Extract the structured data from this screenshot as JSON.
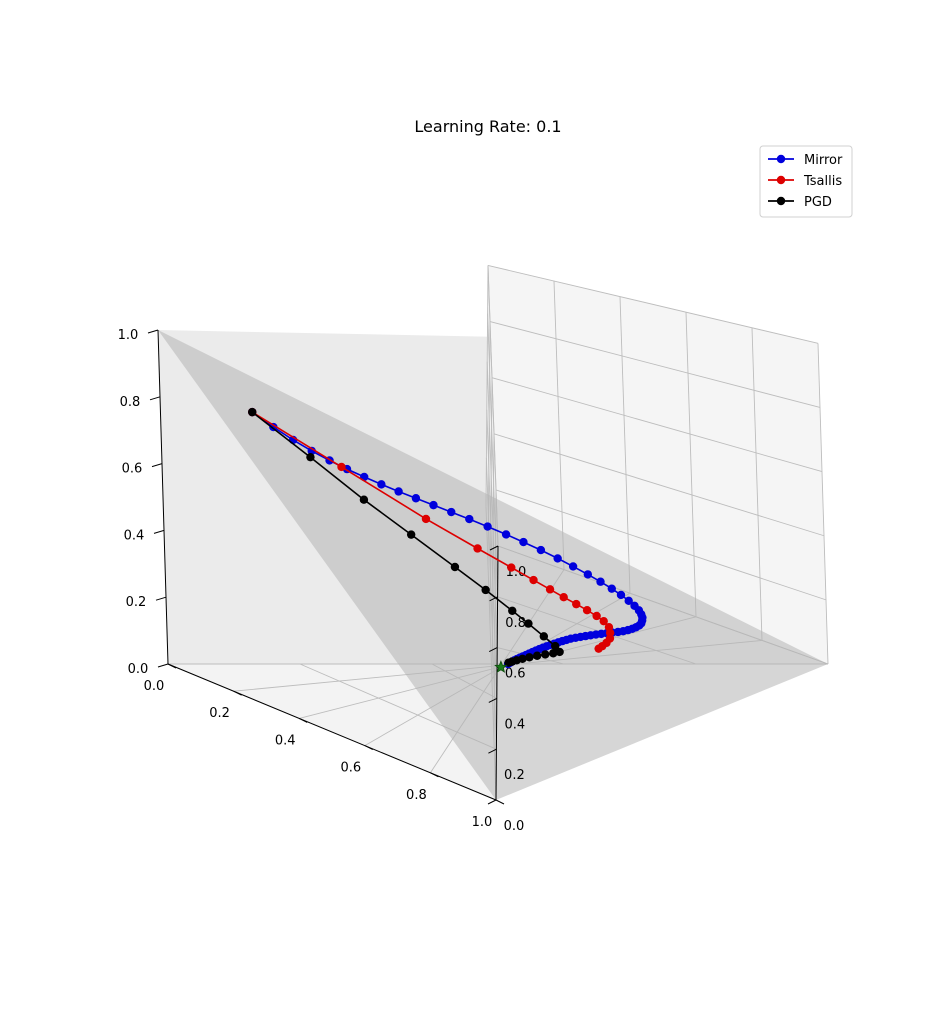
{
  "chart_data": {
    "type": "line",
    "projection": "3d-simplex",
    "title": "Learning Rate: 0.1",
    "xlabel": "",
    "ylabel": "",
    "zlabel": "",
    "xlim": [
      0,
      1
    ],
    "ylim": [
      0,
      1
    ],
    "zlim": [
      0,
      1
    ],
    "x_ticks": [
      "0.0",
      "0.2",
      "0.4",
      "0.6",
      "0.8",
      "1.0"
    ],
    "y_ticks": [
      "0.0",
      "0.2",
      "0.4",
      "0.6",
      "0.8",
      "1.0"
    ],
    "z_ticks": [
      "0.0",
      "0.2",
      "0.4",
      "0.6",
      "0.8",
      "1.0"
    ],
    "grid": true,
    "legend_position": "top-right",
    "simplex_color": "#b5b5b5",
    "series": [
      {
        "name": "Mirror",
        "color": "#0000dd",
        "points": [
          [
            0.1,
            0.1,
            0.8
          ],
          [
            0.112,
            0.13,
            0.758
          ],
          [
            0.12,
            0.16,
            0.72
          ],
          [
            0.124,
            0.19,
            0.686
          ],
          [
            0.125,
            0.22,
            0.655
          ],
          [
            0.124,
            0.25,
            0.626
          ],
          [
            0.121,
            0.28,
            0.599
          ],
          [
            0.117,
            0.31,
            0.573
          ],
          [
            0.112,
            0.34,
            0.548
          ],
          [
            0.106,
            0.37,
            0.524
          ],
          [
            0.1,
            0.4,
            0.5
          ],
          [
            0.094,
            0.43,
            0.476
          ],
          [
            0.088,
            0.46,
            0.452
          ],
          [
            0.083,
            0.49,
            0.427
          ],
          [
            0.079,
            0.52,
            0.401
          ],
          [
            0.076,
            0.548,
            0.376
          ],
          [
            0.074,
            0.576,
            0.35
          ],
          [
            0.074,
            0.603,
            0.323
          ],
          [
            0.075,
            0.628,
            0.297
          ],
          [
            0.077,
            0.652,
            0.271
          ],
          [
            0.08,
            0.673,
            0.247
          ],
          [
            0.084,
            0.692,
            0.224
          ],
          [
            0.089,
            0.708,
            0.203
          ],
          [
            0.095,
            0.722,
            0.183
          ],
          [
            0.101,
            0.733,
            0.166
          ],
          [
            0.108,
            0.742,
            0.15
          ],
          [
            0.116,
            0.748,
            0.136
          ],
          [
            0.124,
            0.752,
            0.124
          ],
          [
            0.133,
            0.754,
            0.113
          ],
          [
            0.142,
            0.755,
            0.103
          ],
          [
            0.151,
            0.754,
            0.095
          ],
          [
            0.161,
            0.751,
            0.088
          ],
          [
            0.171,
            0.747,
            0.082
          ],
          [
            0.181,
            0.742,
            0.077
          ],
          [
            0.191,
            0.736,
            0.073
          ],
          [
            0.201,
            0.729,
            0.07
          ],
          [
            0.211,
            0.721,
            0.068
          ],
          [
            0.221,
            0.713,
            0.066
          ],
          [
            0.231,
            0.705,
            0.064
          ],
          [
            0.241,
            0.697,
            0.062
          ],
          [
            0.251,
            0.689,
            0.06
          ],
          [
            0.261,
            0.681,
            0.058
          ],
          [
            0.271,
            0.673,
            0.056
          ],
          [
            0.281,
            0.665,
            0.054
          ],
          [
            0.291,
            0.657,
            0.052
          ],
          [
            0.301,
            0.65,
            0.049
          ],
          [
            0.311,
            0.643,
            0.046
          ],
          [
            0.321,
            0.636,
            0.043
          ],
          [
            0.331,
            0.629,
            0.04
          ],
          [
            0.341,
            0.622,
            0.037
          ],
          [
            0.351,
            0.615,
            0.034
          ],
          [
            0.361,
            0.608,
            0.031
          ],
          [
            0.371,
            0.601,
            0.028
          ],
          [
            0.381,
            0.594,
            0.025
          ],
          [
            0.391,
            0.587,
            0.022
          ],
          [
            0.401,
            0.58,
            0.019
          ],
          [
            0.411,
            0.573,
            0.016
          ],
          [
            0.42,
            0.566,
            0.014
          ],
          [
            0.429,
            0.559,
            0.012
          ],
          [
            0.438,
            0.552,
            0.01
          ],
          [
            0.446,
            0.546,
            0.008
          ],
          [
            0.454,
            0.54,
            0.006
          ],
          [
            0.461,
            0.535,
            0.004
          ],
          [
            0.468,
            0.53,
            0.002
          ]
        ]
      },
      {
        "name": "Tsallis",
        "color": "#dd0000",
        "points": [
          [
            0.1,
            0.1,
            0.8
          ],
          [
            0.126,
            0.24,
            0.634
          ],
          [
            0.152,
            0.38,
            0.468
          ],
          [
            0.162,
            0.47,
            0.368
          ],
          [
            0.168,
            0.53,
            0.302
          ],
          [
            0.172,
            0.57,
            0.258
          ],
          [
            0.175,
            0.6,
            0.225
          ],
          [
            0.178,
            0.625,
            0.197
          ],
          [
            0.18,
            0.648,
            0.172
          ],
          [
            0.182,
            0.668,
            0.15
          ],
          [
            0.185,
            0.686,
            0.129
          ],
          [
            0.19,
            0.7,
            0.11
          ],
          [
            0.2,
            0.712,
            0.088
          ],
          [
            0.215,
            0.718,
            0.067
          ],
          [
            0.232,
            0.722,
            0.046
          ],
          [
            0.25,
            0.72,
            0.03
          ],
          [
            0.266,
            0.716,
            0.018
          ],
          [
            0.279,
            0.712,
            0.009
          ]
        ]
      },
      {
        "name": "PGD",
        "color": "#000000",
        "points": [
          [
            0.1,
            0.1,
            0.8
          ],
          [
            0.145,
            0.18,
            0.675
          ],
          [
            0.19,
            0.26,
            0.55
          ],
          [
            0.222,
            0.34,
            0.438
          ],
          [
            0.252,
            0.42,
            0.328
          ],
          [
            0.274,
            0.48,
            0.246
          ],
          [
            0.296,
            0.535,
            0.169
          ],
          [
            0.31,
            0.57,
            0.12
          ],
          [
            0.325,
            0.605,
            0.07
          ],
          [
            0.337,
            0.632,
            0.031
          ],
          [
            0.348,
            0.644,
            0.008
          ],
          [
            0.362,
            0.632,
            0.006
          ],
          [
            0.378,
            0.616,
            0.006
          ],
          [
            0.395,
            0.599,
            0.006
          ],
          [
            0.412,
            0.582,
            0.006
          ],
          [
            0.428,
            0.566,
            0.006
          ],
          [
            0.442,
            0.552,
            0.006
          ],
          [
            0.454,
            0.54,
            0.006
          ],
          [
            0.463,
            0.531,
            0.006
          ]
        ]
      }
    ],
    "optimum": {
      "point": [
        0.49,
        0.51,
        0.0
      ],
      "marker": "star",
      "color": "#1a7a1a"
    }
  }
}
